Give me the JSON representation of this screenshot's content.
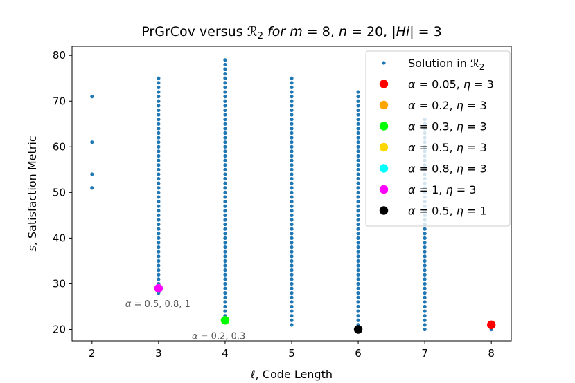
{
  "chart_data": {
    "type": "scatter",
    "title": "PrGrCov versus ℛ2 for m = 8, n = 20, |Hi| = 3",
    "xlabel": "ℓ, Code Length",
    "ylabel": "s, Satisfaction Metric",
    "xlim": [
      1.7,
      8.3
    ],
    "ylim": [
      17.5,
      82
    ],
    "xticks": [
      2,
      3,
      4,
      5,
      6,
      7,
      8
    ],
    "yticks": [
      20,
      30,
      40,
      50,
      60,
      70,
      80
    ],
    "legend_position": "top-right",
    "solution_color": "#1f77b4",
    "solution_label": "Solution in ℛ2",
    "solutions": [
      {
        "x": 2,
        "y_values": [
          51,
          54,
          61,
          71
        ]
      },
      {
        "x": 3,
        "y_min": 28,
        "y_max": 75
      },
      {
        "x": 4,
        "y_min": 23,
        "y_max": 79
      },
      {
        "x": 5,
        "y_min": 21,
        "y_max": 75
      },
      {
        "x": 6,
        "y_min": 21,
        "y_max": 72
      },
      {
        "x": 7,
        "y_min": 20,
        "y_max": 66
      },
      {
        "x": 8,
        "y_values": [
          20
        ]
      }
    ],
    "series": [
      {
        "name": "α = 0.05, η = 3",
        "color": "#ff0000",
        "x": 8,
        "y": 21
      },
      {
        "name": "α = 0.2, η = 3",
        "color": "#ffa500",
        "x": 4,
        "y": 22
      },
      {
        "name": "α = 0.3, η = 3",
        "color": "#00ff00",
        "x": 4,
        "y": 22
      },
      {
        "name": "α = 0.5, η = 3",
        "color": "#ffd700",
        "x": 3,
        "y": 29
      },
      {
        "name": "α = 0.8, η = 3",
        "color": "#00ffff",
        "x": 3,
        "y": 29
      },
      {
        "name": "α = 1, η = 3",
        "color": "#ff00ff",
        "x": 3,
        "y": 29
      },
      {
        "name": "α = 0.5, η = 1",
        "color": "#000000",
        "x": 6,
        "y": 20
      }
    ],
    "annotations": [
      {
        "text": "α = 0.5, 0.8, 1",
        "x": 3,
        "y": 29
      },
      {
        "text": "α = 0.2, 0.3",
        "x": 4,
        "y": 22
      }
    ]
  }
}
